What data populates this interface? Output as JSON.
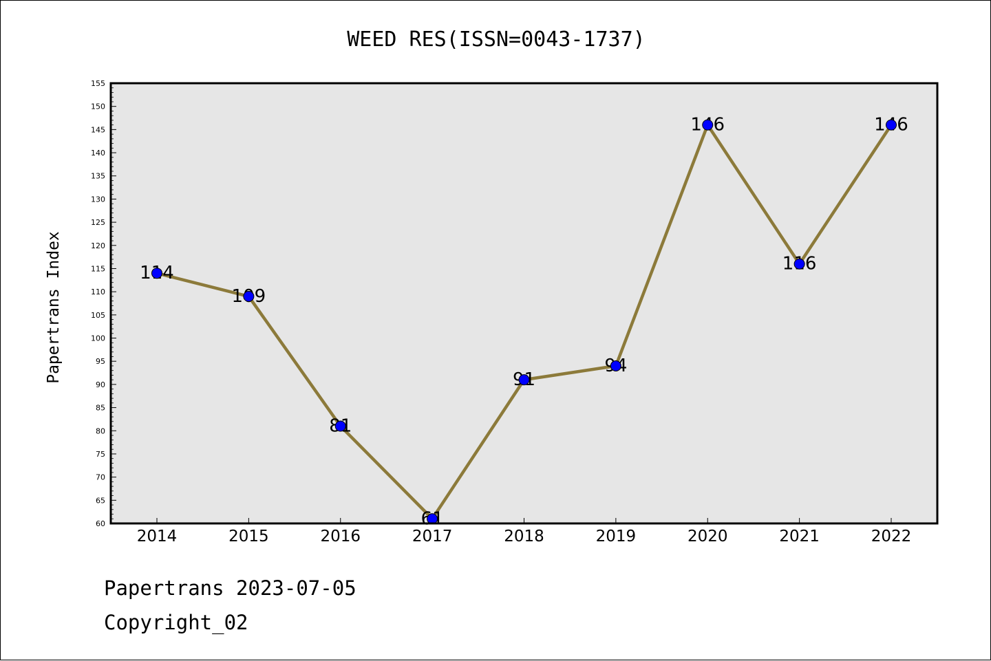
{
  "chart_data": {
    "type": "line",
    "title": "WEED RES(ISSN=0043-1737)",
    "xlabel": "",
    "ylabel": "Papertrans Index",
    "categories": [
      "2014",
      "2015",
      "2016",
      "2017",
      "2018",
      "2019",
      "2020",
      "2021",
      "2022"
    ],
    "values": [
      114,
      109,
      81,
      61,
      91,
      94,
      146,
      116,
      146
    ],
    "ylim": [
      60,
      155
    ],
    "yticks": [
      60,
      65,
      70,
      75,
      80,
      85,
      90,
      95,
      100,
      105,
      110,
      115,
      120,
      125,
      130,
      135,
      140,
      145,
      150,
      155
    ],
    "grid": false,
    "legend": "none",
    "line_color": "#8c7a3a",
    "marker_color": "#0000ff",
    "background_color": "#e6e6e6"
  },
  "footer": {
    "line1": "Papertrans 2023-07-05",
    "line2": "Copyright_02"
  }
}
